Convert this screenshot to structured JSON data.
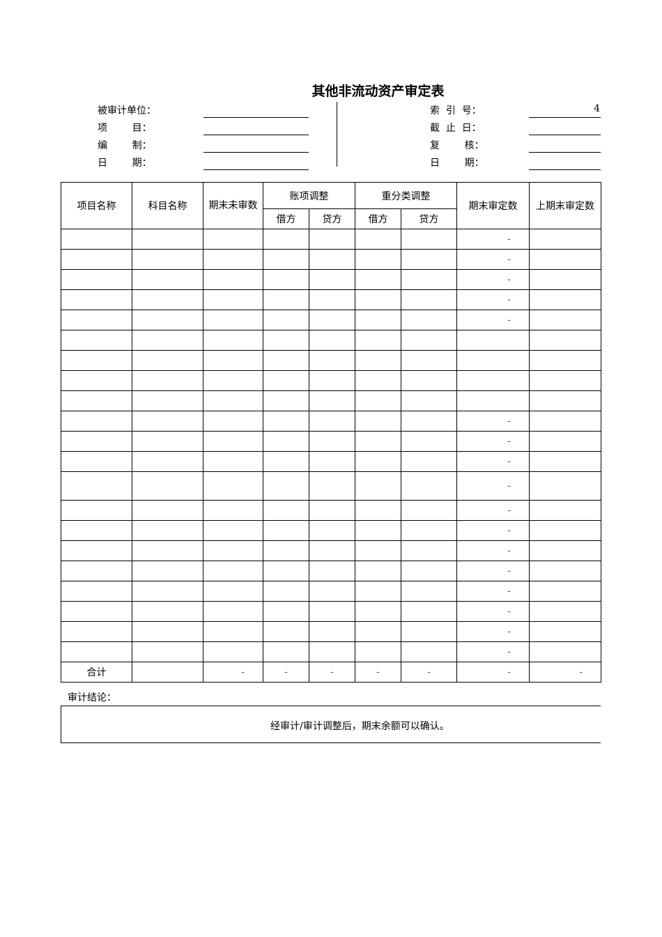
{
  "title": "其他非流动资产审定表",
  "meta_left": [
    {
      "label": "被审计单位：",
      "value": ""
    },
    {
      "label": "项        目：",
      "value": ""
    },
    {
      "label": "编        制：",
      "value": ""
    },
    {
      "label": "日        期：",
      "value": ""
    }
  ],
  "meta_right": [
    {
      "label": "索  引  号：",
      "value": "4"
    },
    {
      "label": "截  止  日：",
      "value": ""
    },
    {
      "label": "复        核：",
      "value": ""
    },
    {
      "label": "日        期：",
      "value": ""
    }
  ],
  "table": {
    "headers": {
      "item": "项目名称",
      "account": "科目名称",
      "unaudited": "期末未审数",
      "adj": "账项调整",
      "reclass": "重分类调整",
      "audited": "期末审定数",
      "prior": "上期末审定数",
      "debit": "借方",
      "credit": "贷方"
    },
    "rows": [
      {
        "audited": "-"
      },
      {
        "audited": "-"
      },
      {
        "audited": "-"
      },
      {
        "audited": "-"
      },
      {
        "audited": "-"
      },
      {
        "audited": ""
      },
      {
        "audited": ""
      },
      {
        "audited": ""
      },
      {
        "audited": ""
      },
      {
        "audited": "-"
      },
      {
        "audited": "-"
      },
      {
        "audited": "-"
      },
      {
        "audited": "-"
      },
      {
        "audited": "-"
      },
      {
        "audited": "-"
      },
      {
        "audited": "-"
      },
      {
        "audited": "-"
      },
      {
        "audited": "-"
      },
      {
        "audited": "-"
      },
      {
        "audited": "-"
      },
      {
        "audited": "-"
      }
    ],
    "total": {
      "label": "合计",
      "account": "",
      "unaudited": "-",
      "adj_debit": "-",
      "adj_credit": "-",
      "re_debit": "-",
      "re_credit": "-",
      "audited": "-",
      "prior": "-"
    }
  },
  "conclusion": {
    "label": "审计结论：",
    "text": "经审计/审计调整后，期末余额可以确认。"
  }
}
